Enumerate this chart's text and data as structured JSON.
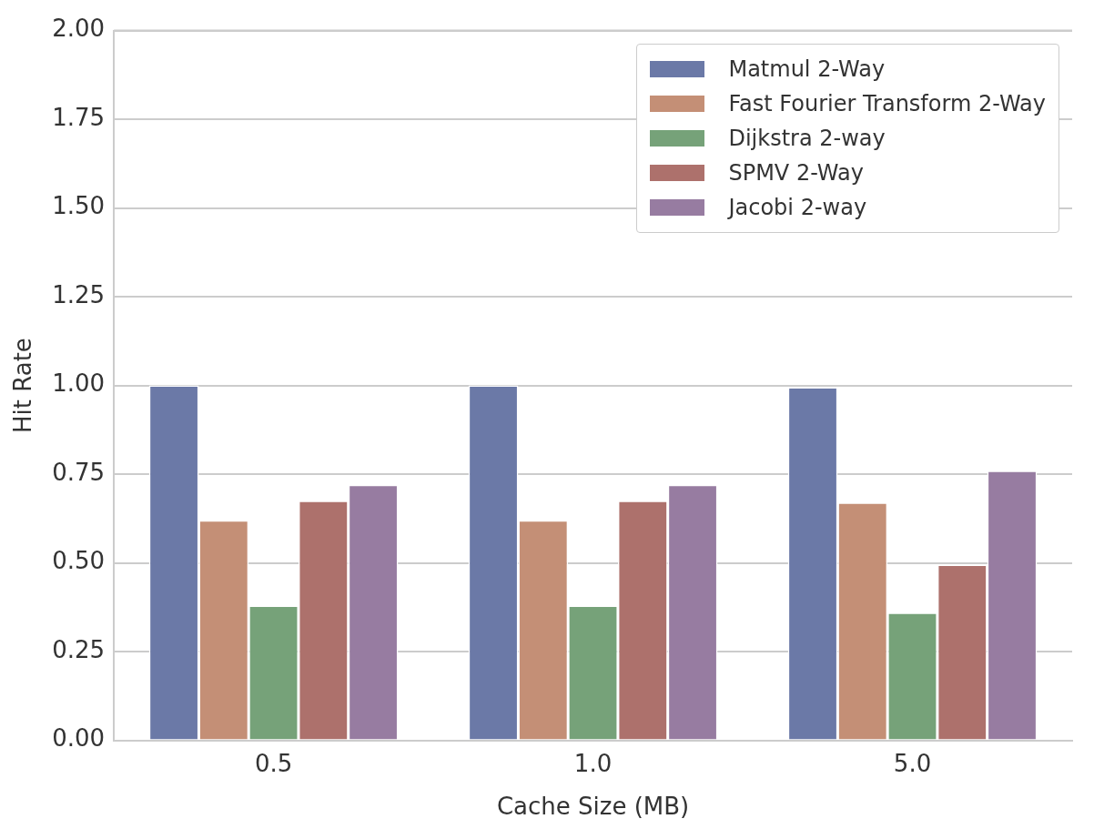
{
  "chart_data": {
    "type": "bar",
    "xlabel": "Cache Size (MB)",
    "ylabel": "Hit Rate",
    "categories": [
      "0.5",
      "1.0",
      "5.0"
    ],
    "series": [
      {
        "name": "Matmul 2-Way",
        "color": "#6b79a7",
        "values": [
          1.0,
          1.0,
          0.995
        ]
      },
      {
        "name": "Fast Fourier Transform 2-Way",
        "color": "#c48f76",
        "values": [
          0.62,
          0.62,
          0.67
        ]
      },
      {
        "name": "Dijkstra 2-way",
        "color": "#76a279",
        "values": [
          0.38,
          0.38,
          0.36
        ]
      },
      {
        "name": "SPMV 2-Way",
        "color": "#ad716c",
        "values": [
          0.675,
          0.675,
          0.495
        ]
      },
      {
        "name": "Jacobi 2-way",
        "color": "#977ca1",
        "values": [
          0.72,
          0.72,
          0.76
        ]
      }
    ],
    "ylim": [
      0,
      2
    ],
    "yticks": [
      {
        "value": 0,
        "label": "0.00"
      },
      {
        "value": 0.25,
        "label": "0.25"
      },
      {
        "value": 0.5,
        "label": "0.50"
      },
      {
        "value": 0.75,
        "label": "0.75"
      },
      {
        "value": 1,
        "label": "1.00"
      },
      {
        "value": 1.25,
        "label": "1.25"
      },
      {
        "value": 1.5,
        "label": "1.50"
      },
      {
        "value": 1.75,
        "label": "1.75"
      },
      {
        "value": 2,
        "label": "2.00"
      }
    ],
    "grid": "y",
    "legend": "top right"
  }
}
